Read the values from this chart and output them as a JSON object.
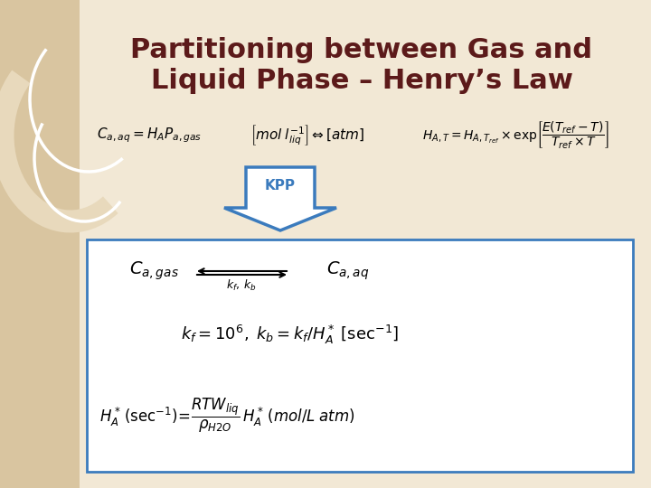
{
  "title_line1": "Partitioning between Gas and",
  "title_line2": "Liquid Phase – Henry’s Law",
  "title_color": "#5C1A1A",
  "title_fontsize": 22,
  "bg_slide": "#F2E8D5",
  "bg_white": "#FFFFFF",
  "border_color": "#3B7BBD",
  "kpp_color": "#3B7BBD",
  "strip_color": "#D9C5A0",
  "circle_color": "#E8D9BC",
  "fig_width": 7.2,
  "fig_height": 5.4,
  "dpi": 100
}
